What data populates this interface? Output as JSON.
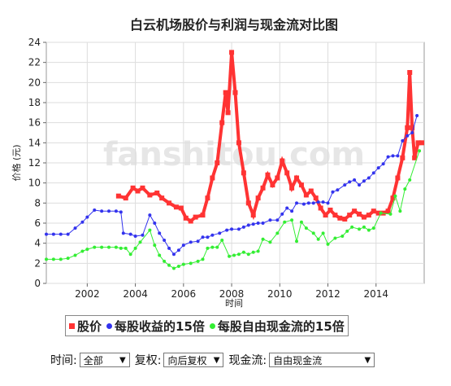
{
  "chart_data": {
    "type": "line",
    "title": "白云机场股价与利润与现金流对比图",
    "watermark": "fanshitou.com",
    "x_label": "时间",
    "y_label": "价格 (元)",
    "xlim": [
      2000.3,
      2016.0
    ],
    "xticks": [
      2002,
      2004,
      2006,
      2008,
      2010,
      2012,
      2014
    ],
    "ylim": [
      0,
      24
    ],
    "yticks": [
      0,
      2,
      4,
      6,
      8,
      10,
      12,
      14,
      16,
      18,
      20,
      22,
      24
    ],
    "grid": true,
    "series": [
      {
        "name": "股价",
        "color": "#ff3333",
        "marker": "square",
        "x": [
          2003.3,
          2003.6,
          2003.9,
          2004.1,
          2004.3,
          2004.6,
          2004.9,
          2005.1,
          2005.4,
          2005.7,
          2005.9,
          2006.1,
          2006.3,
          2006.5,
          2006.8,
          2007.0,
          2007.2,
          2007.4,
          2007.6,
          2007.75,
          2007.85,
          2008.0,
          2008.15,
          2008.3,
          2008.5,
          2008.7,
          2008.9,
          2009.1,
          2009.3,
          2009.5,
          2009.7,
          2009.9,
          2010.1,
          2010.3,
          2010.5,
          2010.7,
          2010.9,
          2011.1,
          2011.3,
          2011.5,
          2011.7,
          2011.9,
          2012.1,
          2012.3,
          2012.5,
          2012.7,
          2012.9,
          2013.1,
          2013.3,
          2013.5,
          2013.7,
          2013.9,
          2014.1,
          2014.3,
          2014.5,
          2014.7,
          2014.9,
          2015.1,
          2015.3,
          2015.4,
          2015.5,
          2015.6,
          2015.75,
          2015.9
        ],
        "values": [
          8.7,
          8.5,
          9.5,
          9.2,
          9.5,
          8.8,
          9.0,
          8.5,
          8.0,
          7.6,
          7.5,
          6.5,
          6.2,
          6.6,
          6.8,
          8.5,
          10.5,
          12.0,
          16.0,
          19.0,
          17.0,
          23.0,
          19.0,
          14.0,
          11.0,
          8.0,
          6.8,
          8.5,
          9.5,
          10.8,
          9.8,
          10.5,
          12.2,
          11.0,
          9.5,
          10.5,
          9.8,
          8.8,
          9.2,
          8.5,
          7.5,
          6.8,
          7.3,
          6.8,
          6.5,
          6.4,
          6.8,
          7.2,
          6.9,
          6.6,
          6.8,
          7.2,
          7.0,
          7.0,
          7.2,
          8.5,
          10.5,
          12.5,
          15.5,
          21.0,
          15.5,
          12.5,
          14.0,
          14.0
        ]
      },
      {
        "name": "每股收益的15倍",
        "color": "#3333ee",
        "marker": "circle",
        "x": [
          2000.3,
          2000.6,
          2000.9,
          2001.2,
          2001.5,
          2001.8,
          2002.0,
          2002.3,
          2002.6,
          2002.9,
          2003.2,
          2003.4,
          2003.5,
          2003.8,
          2004.0,
          2004.3,
          2004.6,
          2004.8,
          2005.0,
          2005.2,
          2005.4,
          2005.6,
          2005.8,
          2006.0,
          2006.3,
          2006.6,
          2006.8,
          2007.0,
          2007.2,
          2007.5,
          2007.8,
          2008.0,
          2008.3,
          2008.5,
          2008.7,
          2008.9,
          2009.1,
          2009.3,
          2009.6,
          2009.9,
          2010.1,
          2010.3,
          2010.5,
          2010.7,
          2011.0,
          2011.2,
          2011.4,
          2011.6,
          2011.8,
          2012.0,
          2012.2,
          2012.4,
          2012.7,
          2012.9,
          2013.1,
          2013.3,
          2013.5,
          2013.7,
          2013.9,
          2014.1,
          2014.3,
          2014.5,
          2014.7,
          2014.9,
          2015.1,
          2015.3,
          2015.5,
          2015.7
        ],
        "values": [
          4.9,
          4.9,
          4.9,
          4.9,
          5.5,
          6.1,
          6.6,
          7.3,
          7.2,
          7.2,
          7.2,
          7.1,
          5.0,
          4.9,
          4.7,
          4.8,
          6.8,
          6.0,
          5.0,
          4.3,
          3.5,
          2.9,
          3.3,
          3.8,
          4.1,
          4.2,
          4.6,
          4.6,
          4.8,
          5.0,
          5.3,
          5.4,
          5.4,
          5.6,
          5.8,
          5.9,
          6.0,
          6.0,
          6.3,
          6.3,
          6.9,
          7.5,
          7.2,
          8.0,
          7.9,
          8.0,
          8.0,
          8.1,
          8.1,
          8.0,
          9.1,
          9.3,
          9.8,
          10.1,
          10.3,
          9.8,
          10.2,
          10.5,
          11.0,
          11.5,
          11.9,
          12.6,
          12.7,
          12.7,
          14.2,
          14.7,
          15.0,
          16.7
        ]
      },
      {
        "name": "每股自由现金流的15倍",
        "color": "#33ee33",
        "marker": "circle",
        "x": [
          2000.3,
          2000.6,
          2000.9,
          2001.2,
          2001.5,
          2001.8,
          2002.0,
          2002.3,
          2002.6,
          2002.9,
          2003.2,
          2003.4,
          2003.6,
          2003.8,
          2004.0,
          2004.2,
          2004.6,
          2004.8,
          2005.0,
          2005.2,
          2005.4,
          2005.6,
          2005.8,
          2006.0,
          2006.3,
          2006.6,
          2006.8,
          2007.0,
          2007.2,
          2007.4,
          2007.6,
          2007.9,
          2008.1,
          2008.3,
          2008.5,
          2008.7,
          2008.9,
          2009.1,
          2009.3,
          2009.6,
          2009.9,
          2010.2,
          2010.5,
          2010.7,
          2010.9,
          2011.1,
          2011.4,
          2011.6,
          2011.8,
          2012.0,
          2012.3,
          2012.6,
          2012.8,
          2013.0,
          2013.3,
          2013.5,
          2013.7,
          2013.9,
          2014.2,
          2014.6,
          2014.8,
          2015.0,
          2015.2,
          2015.4,
          2015.8
        ],
        "values": [
          2.4,
          2.4,
          2.4,
          2.5,
          2.8,
          3.2,
          3.4,
          3.6,
          3.6,
          3.6,
          3.6,
          3.5,
          3.5,
          2.9,
          3.5,
          4.1,
          5.3,
          3.8,
          2.8,
          2.2,
          1.8,
          1.5,
          1.7,
          1.9,
          2.0,
          2.2,
          2.4,
          3.5,
          3.6,
          3.6,
          4.3,
          2.7,
          2.8,
          2.9,
          3.1,
          2.9,
          3.1,
          3.2,
          4.4,
          4.1,
          5.0,
          6.1,
          6.3,
          4.2,
          6.1,
          5.5,
          5.0,
          4.4,
          5.0,
          3.9,
          4.5,
          4.7,
          5.2,
          5.6,
          5.4,
          5.6,
          5.3,
          5.5,
          7.0,
          6.9,
          8.7,
          7.2,
          9.4,
          10.3,
          13.2
        ]
      }
    ]
  },
  "controls": [
    {
      "label": "时间:",
      "selected": "全部"
    },
    {
      "label": "复权:",
      "selected": "向后复权"
    },
    {
      "label": "现金流:",
      "selected": "自由现金流"
    }
  ]
}
